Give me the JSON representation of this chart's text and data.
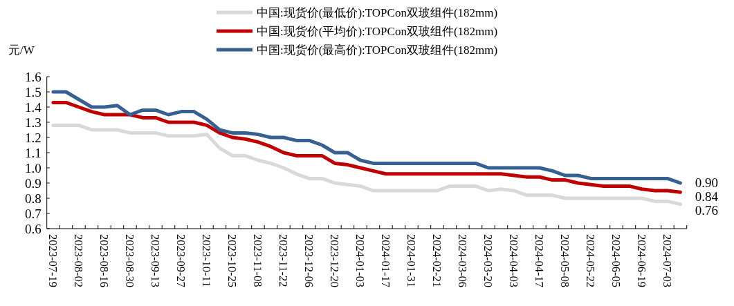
{
  "chart_data": {
    "type": "line",
    "ylabel": "元/W",
    "categories": [
      "2023-07-19",
      null,
      "2023-08-02",
      null,
      "2023-08-16",
      null,
      "2023-08-30",
      null,
      "2023-09-13",
      null,
      "2023-09-27",
      null,
      "2023-10-11",
      null,
      "2023-10-25",
      null,
      "2023-11-08",
      null,
      "2023-11-22",
      null,
      "2023-12-06",
      null,
      "2023-12-20",
      null,
      "2024-01-03",
      null,
      "2024-01-17",
      null,
      "2024-01-31",
      null,
      "2024-02-21",
      null,
      "2024-03-06",
      null,
      "2024-03-20",
      null,
      "2024-04-03",
      null,
      "2024-04-17",
      null,
      "2024-05-08",
      null,
      "2024-05-22",
      null,
      "2024-06-05",
      null,
      "2024-06-19",
      null,
      "2024-07-03",
      null
    ],
    "series": [
      {
        "name": "中国:现货价(最低价):TOPCon双玻组件(182mm)",
        "color": "#d9d9d9",
        "values": [
          1.28,
          1.28,
          1.28,
          1.25,
          1.25,
          1.25,
          1.23,
          1.23,
          1.23,
          1.21,
          1.21,
          1.21,
          1.22,
          1.13,
          1.08,
          1.08,
          1.05,
          1.03,
          1.0,
          0.96,
          0.93,
          0.93,
          0.9,
          0.89,
          0.88,
          0.85,
          0.85,
          0.85,
          0.85,
          0.85,
          0.85,
          0.88,
          0.88,
          0.88,
          0.85,
          0.86,
          0.85,
          0.82,
          0.82,
          0.82,
          0.8,
          0.8,
          0.8,
          0.8,
          0.8,
          0.8,
          0.8,
          0.78,
          0.78,
          0.76
        ],
        "value_labels": [
          null,
          null,
          null,
          null,
          null,
          null,
          null,
          null,
          null,
          null,
          null,
          null,
          null,
          null,
          null,
          null,
          null,
          null,
          null,
          null,
          null,
          null,
          null,
          null,
          null,
          null,
          null,
          null,
          null,
          null,
          null,
          null,
          null,
          null,
          null,
          null,
          null,
          null,
          null,
          null,
          null,
          null,
          null,
          null,
          null,
          null,
          null,
          null,
          null,
          "0.76"
        ]
      },
      {
        "name": "中国:现货价(平均价):TOPCon双玻组件(182mm)",
        "color": "#c00000",
        "values": [
          1.43,
          1.43,
          1.4,
          1.37,
          1.35,
          1.35,
          1.35,
          1.33,
          1.33,
          1.3,
          1.3,
          1.3,
          1.28,
          1.23,
          1.2,
          1.19,
          1.17,
          1.14,
          1.1,
          1.08,
          1.08,
          1.08,
          1.03,
          1.02,
          1.0,
          0.98,
          0.96,
          0.96,
          0.96,
          0.96,
          0.96,
          0.96,
          0.96,
          0.96,
          0.96,
          0.96,
          0.95,
          0.94,
          0.94,
          0.92,
          0.92,
          0.9,
          0.89,
          0.88,
          0.88,
          0.88,
          0.86,
          0.85,
          0.85,
          0.84
        ],
        "value_labels": [
          null,
          null,
          null,
          null,
          null,
          null,
          null,
          null,
          null,
          null,
          null,
          null,
          null,
          null,
          null,
          null,
          null,
          null,
          null,
          null,
          null,
          null,
          null,
          null,
          null,
          null,
          null,
          null,
          null,
          null,
          null,
          null,
          null,
          null,
          null,
          null,
          null,
          null,
          null,
          null,
          null,
          null,
          null,
          null,
          null,
          null,
          null,
          null,
          null,
          "0.84"
        ]
      },
      {
        "name": "中国:现货价(最高价):TOPCon双玻组件(182mm)",
        "color": "#376092",
        "values": [
          1.5,
          1.5,
          1.45,
          1.4,
          1.4,
          1.41,
          1.35,
          1.38,
          1.38,
          1.35,
          1.37,
          1.37,
          1.32,
          1.25,
          1.23,
          1.23,
          1.22,
          1.2,
          1.2,
          1.18,
          1.18,
          1.15,
          1.1,
          1.1,
          1.05,
          1.03,
          1.03,
          1.03,
          1.03,
          1.03,
          1.03,
          1.03,
          1.03,
          1.03,
          1.0,
          1.0,
          1.0,
          1.0,
          1.0,
          0.98,
          0.95,
          0.95,
          0.93,
          0.93,
          0.93,
          0.93,
          0.93,
          0.93,
          0.93,
          0.9
        ],
        "value_labels": [
          null,
          null,
          null,
          null,
          null,
          null,
          null,
          null,
          null,
          null,
          null,
          null,
          null,
          null,
          null,
          null,
          null,
          null,
          null,
          null,
          null,
          null,
          null,
          null,
          null,
          null,
          null,
          null,
          null,
          null,
          null,
          null,
          null,
          null,
          null,
          null,
          null,
          null,
          null,
          null,
          null,
          null,
          null,
          null,
          null,
          null,
          null,
          null,
          null,
          "0.90"
        ]
      }
    ],
    "ylim": [
      0.6,
      1.6
    ],
    "yticks": [
      0.6,
      0.7,
      0.8,
      0.9,
      {
        "value": 1.0,
        "label": "1.0"
      },
      1.1,
      1.2,
      1.3,
      1.4,
      1.5,
      1.6
    ],
    "legend": "top",
    "grid": false,
    "marker": "none",
    "line_style": "solid"
  }
}
